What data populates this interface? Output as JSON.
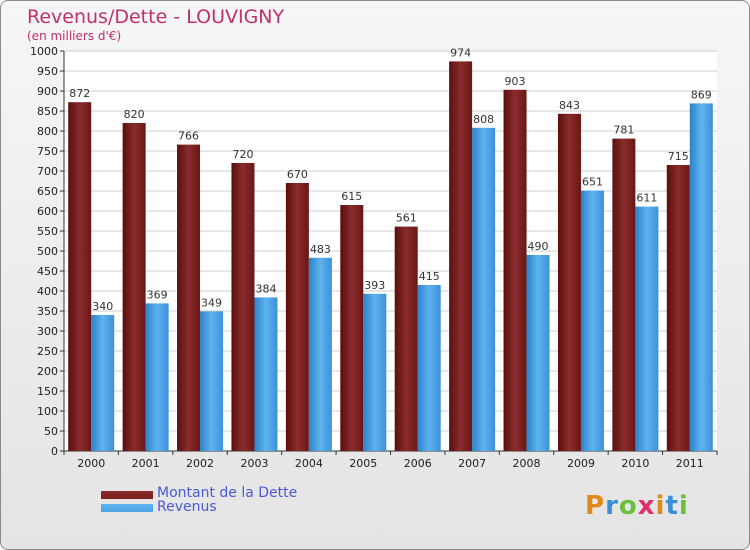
{
  "header": {
    "title": "Revenus/Dette - LOUVIGNY",
    "subtitle": "(en milliers d'€)"
  },
  "colors": {
    "dette": "#7b1f1f",
    "revenus": "#4aa3e2",
    "title": "#c0306a",
    "legend_text": "#4a5ad6"
  },
  "logo": {
    "text": "Proxiti",
    "letters": [
      "P",
      "r",
      "o",
      "x",
      "i",
      "t",
      "i"
    ],
    "letter_colors": [
      "#e08a1e",
      "#3a8fd6",
      "#6cbf3a",
      "#e02f6a",
      "#e08a1e",
      "#3a8fd6",
      "#6cbf3a"
    ]
  },
  "chart_data": {
    "type": "bar",
    "categories": [
      "2000",
      "2001",
      "2002",
      "2003",
      "2004",
      "2005",
      "2006",
      "2007",
      "2008",
      "2009",
      "2010",
      "2011"
    ],
    "series": [
      {
        "name": "Montant de la Dette",
        "values": [
          872,
          820,
          766,
          720,
          670,
          615,
          561,
          974,
          903,
          843,
          781,
          715
        ]
      },
      {
        "name": "Revenus",
        "values": [
          340,
          369,
          349,
          384,
          483,
          393,
          415,
          808,
          490,
          651,
          611,
          869
        ]
      }
    ],
    "ylim": [
      0,
      1000
    ],
    "ytick_step": 50,
    "grid": true,
    "legend_position": "bottom-left"
  }
}
